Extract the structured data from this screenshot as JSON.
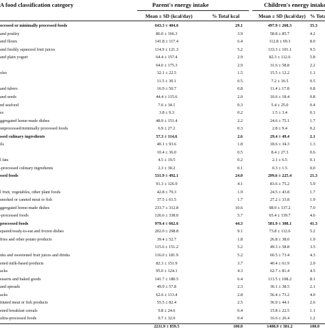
{
  "header": {
    "category": "A food classification category",
    "parent_group": "Parent's energy intake",
    "child_group": "Children's energy intake",
    "mean_sd": "Mean ± SD (kcal/day)",
    "pct_total": "% Total kcal",
    "child_mean_sd": "Mean ± SD (kcal/day)",
    "child_pct_total": "% Total kcal"
  },
  "rows": [
    {
      "label": "ocessed or minimally processed foods",
      "sup": "1",
      "p_mean": "643.3 ± 404.6",
      "p_pct": "29.1",
      "c_mean": "497.9 ± 268.3",
      "c_pct": "35.3",
      "bold": true
    },
    {
      "label": "and poultry",
      "sup": "",
      "p_mean": "86.0 ± 166.3",
      "p_pct": "3.9",
      "c_mean": "58.8 ± 85.7",
      "c_pct": "4.2",
      "bold": false
    },
    {
      "label": "and flours",
      "sup": "",
      "p_mean": "141.8 ± 117.4",
      "p_pct": "6.4",
      "c_mean": "112.8 ± 69.3",
      "c_pct": "8.0",
      "bold": false
    },
    {
      "label": "and freshly squeezed fruit juices",
      "sup": "",
      "p_mean": "114.9 ± 121.3",
      "p_pct": "5.2",
      "c_mean": "133.3 ± 101.1",
      "c_pct": "9.5",
      "bold": false
    },
    {
      "label": "and plain yogurt",
      "sup": "",
      "p_mean": "64.4 ± 157.4",
      "p_pct": "2.9",
      "c_mean": "82.3 ± 112.6",
      "c_pct": "5.8",
      "bold": false
    },
    {
      "label": "",
      "sup": "",
      "p_mean": "64.0 ± 175.3",
      "p_pct": "2.9",
      "c_mean": "31.6 ± 58.8",
      "c_pct": "2.2",
      "bold": false
    },
    {
      "label": "oles",
      "sup": "",
      "p_mean": "32.1 ± 22.5",
      "p_pct": "1.5",
      "c_mean": "15.5 ± 12.2",
      "c_pct": "1.1",
      "bold": false
    },
    {
      "label": "",
      "sup": "",
      "p_mean": "11.5 ± 30.1",
      "p_pct": "0.5",
      "c_mean": "7.2 ± 16.5",
      "c_pct": "0.5",
      "bold": false
    },
    {
      "label": "and tubers",
      "sup": "",
      "p_mean": "16.9 ± 50.7",
      "p_pct": "0.8",
      "c_mean": "11.4 ± 17.8",
      "c_pct": "0.8",
      "bold": false
    },
    {
      "label": "and seeds",
      "sup": "",
      "p_mean": "44.4 ± 115.6",
      "p_pct": "2.0",
      "c_mean": "10.6 ± 18.4",
      "c_pct": "0.8",
      "bold": false
    },
    {
      "label": "nd seafood",
      "sup": "",
      "p_mean": "7.6 ± 34.1",
      "p_pct": "0.3",
      "c_mean": "5.4 ± 25.0",
      "c_pct": "0.4",
      "bold": false
    },
    {
      "label": "es",
      "sup": "",
      "p_mean": "3.8 ± 9.3",
      "p_pct": "0.2",
      "c_mean": "1.5 ± 3.4",
      "c_pct": "0.1",
      "bold": false
    },
    {
      "label": "ggregated home-made dishes",
      "sup": "2",
      "p_mean": "48.9 ± 151.4",
      "p_pct": "2.2",
      "c_mean": "24.6 ± 75.1",
      "c_pct": "1.7",
      "bold": false
    },
    {
      "label": "unprocessed/minimally processed foods",
      "sup": "3",
      "p_mean": "6.9 ± 27.2",
      "p_pct": "0.3",
      "c_mean": "2.8 ± 9.4",
      "c_pct": "0.2",
      "bold": false
    },
    {
      "label": "ssed culinary ingredients",
      "sup": "4",
      "p_mean": "57.3 ± 114.6",
      "p_pct": "2.6",
      "c_mean": "29.4 ± 49.4",
      "c_pct": "2.1",
      "bold": true
    },
    {
      "label": "ils",
      "sup": "",
      "p_mean": "40.1 ± 93.6",
      "p_pct": "1.8",
      "c_mean": "18.6 ± 34.3",
      "c_pct": "1.3",
      "bold": false
    },
    {
      "label": "",
      "sup": "",
      "p_mean": "10.4 ± 36.0",
      "p_pct": "0.5",
      "c_mean": "8.4 ± 27.3",
      "c_pct": "0.6",
      "bold": false
    },
    {
      "label": "l fats",
      "sup": "",
      "p_mean": "4.5 ± 19.5",
      "p_pct": "0.2",
      "c_mean": "2.1 ± 6.5",
      "c_pct": "0.1",
      "bold": false
    },
    {
      "label": "-processed culinary ingredients",
      "sup": "6",
      "p_mean": "2.3 ± 30.2",
      "p_pct": "0.1",
      "c_mean": "0.3 ± 1.5",
      "c_pct": "0.0",
      "bold": false
    },
    {
      "label": "ssed foods",
      "sup": "7",
      "p_mean": "531.9 ± 492.1",
      "p_pct": "24.0",
      "c_mean": "299.6 ± 225.4",
      "c_pct": "21.3",
      "bold": true
    },
    {
      "label": "",
      "sup": "",
      "p_mean": "91.3 ± 126.9",
      "p_pct": "4.1",
      "c_mean": "83.6 ± 75.2",
      "c_pct": "5.9",
      "bold": false
    },
    {
      "label": "l fruit, vegetables, other plant foods",
      "sup": "",
      "p_mean": "42.8 ± 79.3",
      "p_pct": "1.9",
      "c_mean": "24.5 ± 43.8",
      "c_pct": "1.7",
      "bold": false
    },
    {
      "label": "smoked or canned meat or fish",
      "sup": "",
      "p_mean": "37.5 ± 61.5",
      "p_pct": "1.7",
      "c_mean": "27.2 ± 33.8",
      "c_pct": "1.9",
      "bold": false
    },
    {
      "label": "ggregated home-made dishes",
      "sup": "8",
      "p_mean": "233.7 ± 312.8",
      "p_pct": "10.6",
      "c_mean": "98.9 ± 137.2",
      "c_pct": "7.0",
      "bold": false
    },
    {
      "label": "-processed foods",
      "sup": "9",
      "p_mean": "126.6 ± 338.0",
      "p_pct": "5.7",
      "c_mean": "65.4 ± 139.7",
      "c_pct": "4.6",
      "bold": false
    },
    {
      "label": "processed foods",
      "sup": "10",
      "p_mean": "979.4 ± 662.6",
      "p_pct": "44.3",
      "c_mean": "581.9 ± 308.1",
      "c_pct": "41.3",
      "bold": true
    },
    {
      "label": "epared/ready-to-eat and frozen dishes",
      "sup": "11",
      "p_mean": "202.0 ± 298.8",
      "p_pct": "9.1",
      "c_mean": "73.8 ± 112.6",
      "c_pct": "5.2",
      "bold": false
    },
    {
      "label": "fries and other potato products",
      "sup": "12",
      "p_mean": "39.4 ± 52.7",
      "p_pct": "1.8",
      "c_mean": "26.8 ± 38.0",
      "c_pct": "1.9",
      "bold": false
    },
    {
      "label": "",
      "sup": "",
      "p_mean": "115.6 ± 151.2",
      "p_pct": "5.2",
      "c_mean": "49.3 ± 58.8",
      "c_pct": "3.5",
      "bold": false
    },
    {
      "label": "nks and sweetened fruit juices and drinks",
      "sup": "",
      "p_mean": "116.0 ± 181.9",
      "p_pct": "5.2",
      "c_mean": "60.5 ± 73.4",
      "c_pct": "4.3",
      "bold": false
    },
    {
      "label": "ened milk-based products",
      "sup": "13",
      "p_mean": "82.3 ± 151.9",
      "p_pct": "3.7",
      "c_mean": "40.4 ± 61.9",
      "c_pct": "2.9",
      "bold": false
    },
    {
      "label": "acks",
      "sup": "",
      "p_mean": "95.0 ± 124.1",
      "p_pct": "4.3",
      "c_mean": "62.7 ± 81.4",
      "c_pct": "4.5",
      "bold": false
    },
    {
      "label": "esserts and baked goods",
      "sup": "",
      "p_mean": "141.7 ± 180.5",
      "p_pct": "6.4",
      "c_mean": "113.5 ± 108.2",
      "c_pct": "8.1",
      "bold": false
    },
    {
      "label": "and spreads",
      "sup": "",
      "p_mean": "49.9 ± 57.8",
      "p_pct": "2.3",
      "c_mean": "30.1 ± 38.5",
      "c_pct": "2.1",
      "bold": false
    },
    {
      "label": "acks",
      "sup": "",
      "p_mean": "62.6 ± 113.4",
      "p_pct": "2.8",
      "c_mean": "56.4 ± 73.2",
      "c_pct": "4.0",
      "bold": false
    },
    {
      "label": "tituted meat or fish products",
      "sup": "14",
      "p_mean": "55.5 ± 82.4",
      "p_pct": "2.5",
      "c_mean": "36.0 ± 44.1",
      "c_pct": "2.6",
      "bold": false
    },
    {
      "label": "ened breakfast cereals",
      "sup": "",
      "p_mean": "9.8 ± 24.6",
      "p_pct": "0.4",
      "c_mean": "15.8 ± 22.5",
      "c_pct": "1.1",
      "bold": false
    },
    {
      "label": "ultra-processed foods",
      "sup": "15",
      "p_mean": "9.7 ± 32.0",
      "p_pct": "0.4",
      "c_mean": "16.6 ± 26.4",
      "c_pct": "1.2",
      "bold": false
    },
    {
      "label": "",
      "sup": "",
      "p_mean": "2211.9 ± 859.5",
      "p_pct": "100.0",
      "c_mean": "1408.9 ± 381.2",
      "c_pct": "100.0",
      "bold": true
    }
  ]
}
